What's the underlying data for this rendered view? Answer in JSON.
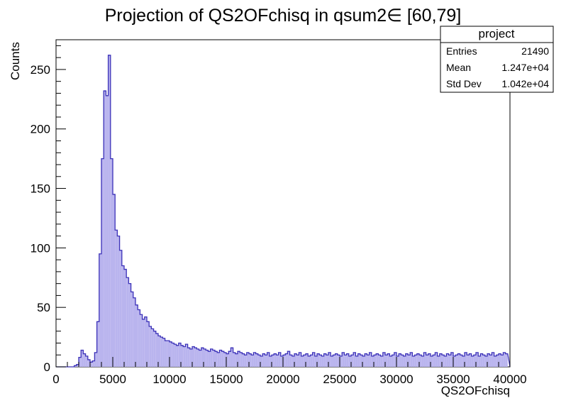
{
  "chart_data": {
    "type": "histogram",
    "title": "Projection of QS2OFchisq in qsum2∈ [60,79]",
    "xlabel": "QS2OFchisq",
    "ylabel": "Counts",
    "xlim": [
      0,
      40000
    ],
    "ylim": [
      0,
      275
    ],
    "x_ticks": [
      0,
      5000,
      10000,
      15000,
      20000,
      25000,
      30000,
      35000,
      40000
    ],
    "y_ticks": [
      0,
      50,
      100,
      150,
      200,
      250
    ],
    "grid": false,
    "line_color": "#3b31b8",
    "fill_color": "#b9b4ee",
    "bin_edges_x": [
      0,
      200,
      400,
      600,
      800,
      1000,
      1200,
      1400,
      1600,
      1800,
      2000,
      2200,
      2400,
      2600,
      2800,
      3000,
      3200,
      3400,
      3600,
      3800,
      4000,
      4200,
      4400,
      4600,
      4800,
      5000,
      5200,
      5400,
      5600,
      5800,
      6000,
      6200,
      6400,
      6600,
      6800,
      7000,
      7200,
      7400,
      7600,
      7800,
      8000,
      8200,
      8400,
      8600,
      8800,
      9000,
      9200,
      9400,
      9600,
      9800,
      10000,
      10200,
      10400,
      10600,
      10800,
      11000,
      11200,
      11400,
      11600,
      11800,
      12000,
      12200,
      12400,
      12600,
      12800,
      13000,
      13200,
      13400,
      13600,
      13800,
      14000,
      14200,
      14400,
      14600,
      14800,
      15000,
      15200,
      15400,
      15600,
      15800,
      16000,
      16200,
      16400,
      16600,
      16800,
      17000,
      17200,
      17400,
      17600,
      17800,
      18000,
      18200,
      18400,
      18600,
      18800,
      19000,
      19200,
      19400,
      19600,
      19800,
      20000,
      20200,
      20400,
      20600,
      20800,
      21000,
      21200,
      21400,
      21600,
      21800,
      22000,
      22200,
      22400,
      22600,
      22800,
      23000,
      23200,
      23400,
      23600,
      23800,
      24000,
      24200,
      24400,
      24600,
      24800,
      25000,
      25200,
      25400,
      25600,
      25800,
      26000,
      26200,
      26400,
      26600,
      26800,
      27000,
      27200,
      27400,
      27600,
      27800,
      28000,
      28200,
      28400,
      28600,
      28800,
      29000,
      29200,
      29400,
      29600,
      29800,
      30000,
      30200,
      30400,
      30600,
      30800,
      31000,
      31200,
      31400,
      31600,
      31800,
      32000,
      32200,
      32400,
      32600,
      32800,
      33000,
      33200,
      33400,
      33600,
      33800,
      34000,
      34200,
      34400,
      34600,
      34800,
      35000,
      35200,
      35400,
      35600,
      35800,
      36000,
      36200,
      36400,
      36600,
      36800,
      37000,
      37200,
      37400,
      37600,
      37800,
      38000,
      38200,
      38400,
      38600,
      38800,
      39000,
      39200,
      39400,
      39600,
      39800,
      40000
    ],
    "counts": [
      0,
      0,
      0,
      0,
      0,
      0,
      0,
      0,
      1,
      2,
      8,
      14,
      11,
      9,
      6,
      4,
      5,
      12,
      38,
      95,
      175,
      232,
      228,
      262,
      175,
      145,
      115,
      110,
      98,
      85,
      82,
      75,
      70,
      63,
      58,
      52,
      48,
      44,
      40,
      42,
      38,
      34,
      32,
      30,
      28,
      26,
      25,
      24,
      22,
      22,
      21,
      20,
      19,
      18,
      20,
      18,
      17,
      19,
      16,
      15,
      17,
      16,
      15,
      14,
      16,
      15,
      14,
      13,
      15,
      14,
      13,
      12,
      14,
      13,
      12,
      11,
      13,
      16,
      12,
      11,
      13,
      12,
      11,
      10,
      12,
      11,
      10,
      12,
      11,
      10,
      9,
      11,
      10,
      12,
      9,
      10,
      11,
      10,
      12,
      9,
      10,
      11,
      13,
      10,
      9,
      11,
      10,
      12,
      9,
      10,
      11,
      9,
      10,
      12,
      9,
      11,
      10,
      9,
      11,
      10,
      12,
      9,
      10,
      11,
      10,
      9,
      12,
      10,
      11,
      9,
      10,
      12,
      9,
      11,
      10,
      9,
      11,
      10,
      12,
      9,
      10,
      11,
      10,
      9,
      12,
      10,
      11,
      9,
      10,
      12,
      9,
      11,
      10,
      9,
      11,
      10,
      12,
      9,
      10,
      11,
      10,
      9,
      12,
      10,
      11,
      9,
      10,
      12,
      9,
      11,
      10,
      9,
      11,
      10,
      12,
      9,
      10,
      11,
      10,
      9,
      12,
      10,
      11,
      9,
      10,
      12,
      9,
      11,
      10,
      9,
      11,
      10,
      12,
      9,
      10,
      11,
      10,
      12,
      11
    ]
  },
  "stats_box": {
    "header": "project",
    "rows": [
      {
        "label": "Entries",
        "value": "21490"
      },
      {
        "label": "Mean",
        "value": "1.247e+04"
      },
      {
        "label": "Std Dev",
        "value": "1.042e+04"
      }
    ]
  }
}
